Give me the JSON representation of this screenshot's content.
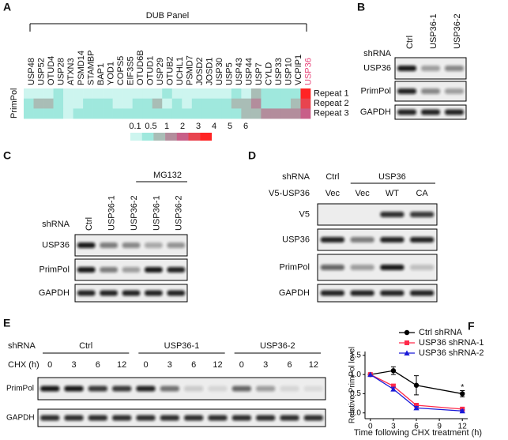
{
  "panels": {
    "A": {
      "label": "A",
      "panel_title": "DUB Panel",
      "row_label": "PrimPol",
      "genes": [
        "USP48",
        "USP52",
        "OTUD4",
        "USP28",
        "ATXN3",
        "PSMD14",
        "STAMBP",
        "BAP1",
        "YOD1",
        "COPS5",
        "EIF3S5",
        "OTUD6B",
        "OTUD1",
        "USP29",
        "OTUB2",
        "UCHL1",
        "PSMD7",
        "JOSD2",
        "JOSD1",
        "USP30",
        "USP5",
        "USP43",
        "USP44",
        "USP7",
        "CYLD",
        "USP33",
        "USP10",
        "VCPIP1",
        "USP36"
      ],
      "highlight_gene": 28,
      "highlight_color": "#e8457a",
      "repeats": [
        "Repeat 1",
        "Repeat 2",
        "Repeat 3"
      ],
      "heatmap": [
        [
          0.2,
          0.3,
          0.3,
          0.5,
          0.2,
          0.3,
          0.3,
          0.3,
          0.2,
          0.3,
          0.3,
          0.2,
          0.2,
          0.3,
          0.6,
          0.3,
          0.3,
          0.3,
          0.3,
          0.3,
          0.2,
          0.6,
          0.3,
          1.5,
          0.6,
          0.6,
          0.6,
          0.6,
          6
        ],
        [
          0.6,
          1.5,
          1.5,
          0.6,
          0.3,
          0.3,
          0.6,
          0.6,
          0.6,
          0.3,
          0.3,
          0.6,
          0.6,
          1.5,
          0.3,
          0.6,
          0.3,
          0.6,
          0.6,
          0.6,
          0.6,
          1.2,
          1.2,
          2.5,
          0.6,
          0.6,
          0.6,
          1.2,
          4.5
        ],
        [
          0.6,
          0.6,
          0.6,
          0.6,
          0.3,
          0.6,
          0.6,
          0.6,
          0.6,
          0.6,
          0.6,
          0.6,
          0.6,
          0.6,
          0.6,
          0.6,
          0.6,
          0.6,
          0.6,
          0.6,
          0.6,
          0.6,
          1.2,
          1.2,
          2.5,
          2.5,
          2.5,
          2.5,
          3.5
        ]
      ],
      "color_scale": {
        "ticks": [
          0.1,
          0.5,
          1,
          2,
          3,
          4,
          5,
          6
        ],
        "colors": [
          "#cdf5ef",
          "#9fe8dd",
          "#a9bdb6",
          "#b38d9c",
          "#c85f88",
          "#e8444f",
          "#ff2424"
        ]
      }
    },
    "B": {
      "label": "B",
      "row_title": "shRNA",
      "lanes": [
        "Ctrl",
        "USP36-1",
        "USP36-2"
      ],
      "blots": [
        {
          "label": "USP36",
          "intensity": [
            0.95,
            0.35,
            0.45
          ]
        },
        {
          "label": "PrimPol",
          "intensity": [
            0.9,
            0.45,
            0.35
          ]
        },
        {
          "label": "GAPDH",
          "intensity": [
            0.9,
            0.9,
            0.9
          ]
        }
      ]
    },
    "C": {
      "label": "C",
      "row_title": "shRNA",
      "treatment": "MG132",
      "lanes": [
        "Ctrl",
        "USP36-1",
        "USP36-2",
        "USP36-1",
        "USP36-2"
      ],
      "blots": [
        {
          "label": "USP36",
          "intensity": [
            0.95,
            0.5,
            0.45,
            0.3,
            0.4
          ]
        },
        {
          "label": "PrimPol",
          "intensity": [
            0.95,
            0.5,
            0.35,
            0.95,
            0.9
          ]
        },
        {
          "label": "GAPDH",
          "intensity": [
            0.9,
            0.9,
            0.9,
            0.9,
            0.9
          ]
        }
      ]
    },
    "D": {
      "label": "D",
      "row_titles": [
        "shRNA",
        "V5-USP36"
      ],
      "groups": [
        "Ctrl",
        "USP36"
      ],
      "lanes": [
        "Vec",
        "Vec",
        "WT",
        "CA"
      ],
      "blots": [
        {
          "label": "V5",
          "intensity": [
            0,
            0,
            0.85,
            0.8
          ]
        },
        {
          "label": "USP36",
          "intensity": [
            0.9,
            0.5,
            0.9,
            0.9
          ]
        },
        {
          "label": "PrimPol",
          "intensity": [
            0.6,
            0.35,
            0.95,
            0.2
          ]
        },
        {
          "label": "GAPDH",
          "intensity": [
            0.9,
            0.9,
            0.9,
            0.9
          ]
        }
      ]
    },
    "E": {
      "label": "E",
      "row_titles": [
        "shRNA",
        "CHX (h)"
      ],
      "groups": [
        "Ctrl",
        "USP36-1",
        "USP36-2"
      ],
      "timepoints": [
        0,
        3,
        6,
        12
      ],
      "blots": [
        {
          "label": "PrimPol",
          "intensity": [
            0.95,
            0.95,
            0.8,
            0.8,
            0.9,
            0.55,
            0.15,
            0.1,
            0.6,
            0.35,
            0.1,
            0.08
          ]
        },
        {
          "label": "GAPDH",
          "intensity": [
            0.85,
            0.85,
            0.85,
            0.85,
            0.85,
            0.85,
            0.85,
            0.85,
            0.85,
            0.85,
            0.85,
            0.85
          ]
        }
      ]
    }
  },
  "chart_data": {
    "type": "line",
    "panel_label": "F",
    "x_label": "Time following CHX treatment (h)",
    "y_label": "Relative PrimPol level",
    "x": [
      0,
      3,
      6,
      12
    ],
    "xlim": [
      -0.7,
      12.7
    ],
    "xticks": [
      0,
      3,
      6,
      9,
      12
    ],
    "ylim": [
      -0.15,
      1.6
    ],
    "yticks": [
      {
        "value": 0,
        "label": "0.0"
      },
      0.5,
      {
        "value": 1,
        "label": "1.0"
      },
      1.5
    ],
    "series": [
      {
        "name": "Ctrl shRNA",
        "color": "#000000",
        "marker": "circle",
        "values": [
          1,
          1.1,
          0.72,
          0.5
        ],
        "errors": [
          0,
          0.1,
          0.25,
          0.08
        ]
      },
      {
        "name": "USP36 shRNA-1",
        "color": "#ff2a4a",
        "marker": "square",
        "values": [
          1,
          0.7,
          0.2,
          0.1
        ],
        "errors": [
          0,
          0.05,
          0.05,
          0.03
        ]
      },
      {
        "name": "USP36 shRNA-2",
        "color": "#1a1ad8",
        "marker": "triangle",
        "values": [
          1,
          0.62,
          0.13,
          0.05
        ],
        "errors": [
          0,
          0.05,
          0.04,
          0.03
        ]
      }
    ],
    "annotation": "*"
  }
}
